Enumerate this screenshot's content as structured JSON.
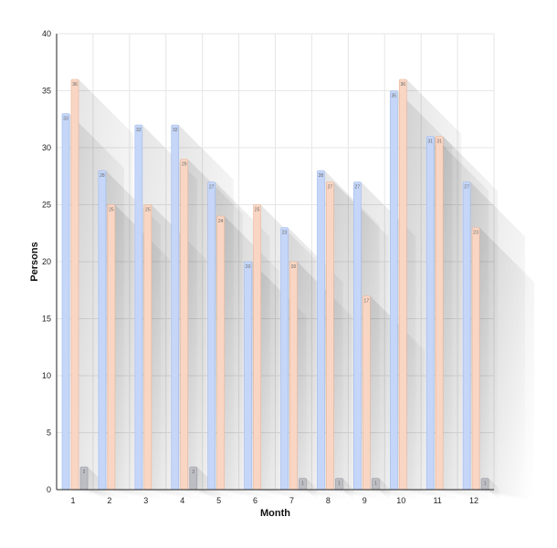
{
  "chart_data": {
    "type": "bar",
    "xlabel": "Month",
    "ylabel": "Persons",
    "ylim": [
      0,
      40
    ],
    "yticks": [
      0,
      5,
      10,
      15,
      20,
      25,
      30,
      35,
      40
    ],
    "grid": true,
    "categories": [
      "1",
      "2",
      "3",
      "4",
      "5",
      "6",
      "7",
      "8",
      "9",
      "10",
      "11",
      "12"
    ],
    "series": [
      {
        "values": [
          33,
          28,
          32,
          32,
          27,
          20,
          23,
          28,
          27,
          35,
          31,
          27
        ],
        "color": "#c5d6f8",
        "stroke": "#9fb8ec"
      },
      {
        "values": [
          36,
          25,
          25,
          29,
          24,
          25,
          20,
          27,
          17,
          36,
          31,
          23
        ],
        "color": "#f9d6c4",
        "stroke": "#eab39a"
      },
      {
        "values": [
          2,
          0,
          0,
          2,
          0,
          0,
          1,
          1,
          1,
          0,
          0,
          1
        ],
        "color": "#bdbdc4",
        "stroke": "#9a9aa2"
      }
    ]
  }
}
